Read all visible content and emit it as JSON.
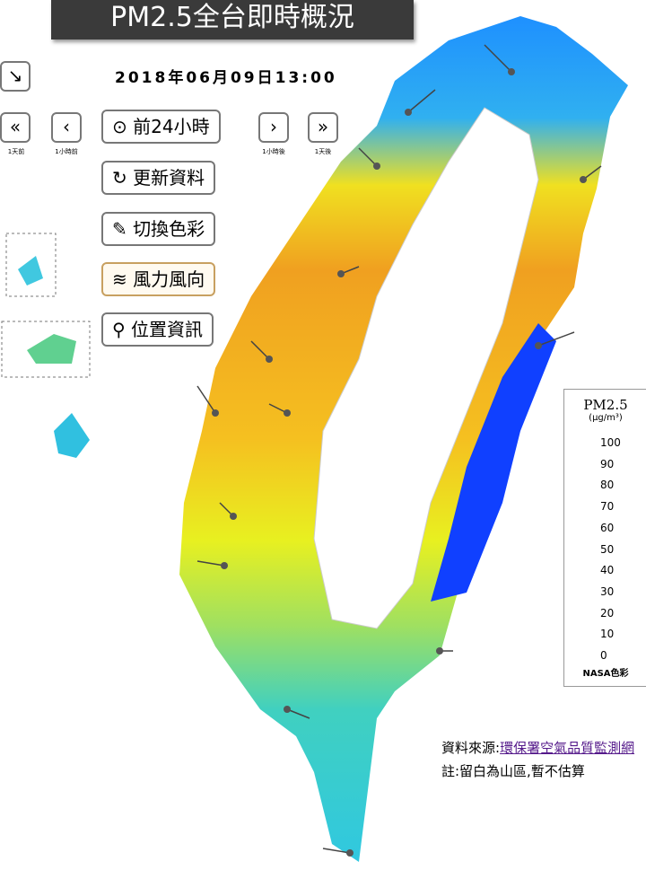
{
  "header": {
    "title": "PM2.5全台即時概況",
    "timestamp": "2018年06月09日13:00"
  },
  "controls": {
    "back_day": "1天前",
    "back_hour": "1小時前",
    "forward_hour": "1小時後",
    "forward_day": "1天後",
    "buttons": [
      "前24小時",
      "更新資料",
      "切換色彩",
      "風力風向",
      "位置資訊"
    ]
  },
  "legend": {
    "title": "PM2.5",
    "unit": "(μg/m³)",
    "ticks": [
      100,
      90,
      80,
      70,
      60,
      50,
      40,
      30,
      20,
      10,
      0
    ],
    "footer": "NASA色彩"
  },
  "footer": {
    "source_label": "資料來源:",
    "source_link": "環保署空氣品質監測網",
    "note": "註:留白為山區,暫不估算"
  }
}
